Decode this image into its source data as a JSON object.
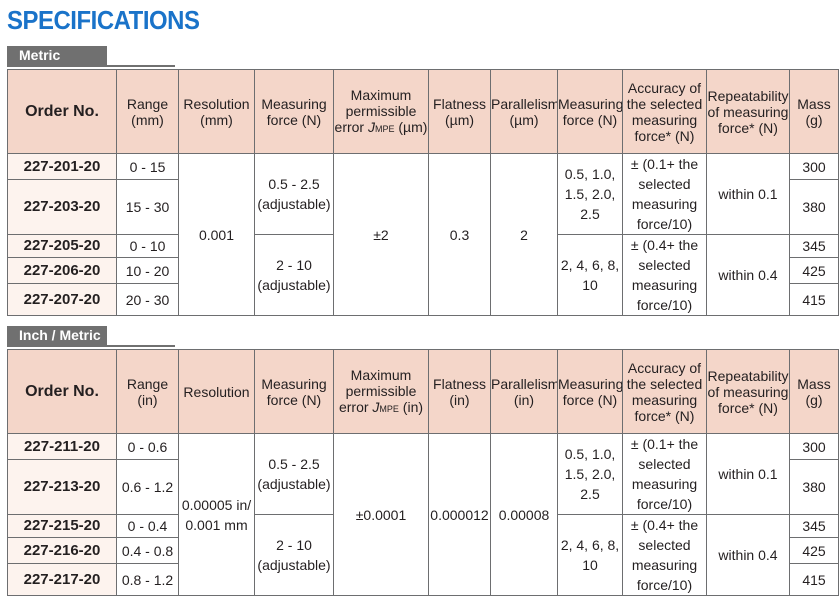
{
  "title": "SPECIFICATIONS",
  "sections": [
    {
      "label": "Metric",
      "headers": {
        "order": "Order No.",
        "range": "Range (mm)",
        "resolution": "Resolution (mm)",
        "force": "Measuring force (N)",
        "mpe_pre": "Maximum permissible error ",
        "mpe_j": "J",
        "mpe_sub": "MPE",
        "mpe_unit": " (µm)",
        "flatness": "Flatness (µm)",
        "parallelism": "Parallelism (µm)",
        "force2": "Measuring force (N)",
        "accuracy": "Accuracy of the selected measuring force* (N)",
        "repeatability": "Repeatability of measuring force* (N)",
        "mass": "Mass (g)"
      },
      "rows": [
        {
          "order": "227-201-20",
          "range": "0 - 15",
          "mass": "300"
        },
        {
          "order": "227-203-20",
          "range": "15 - 30",
          "mass": "380"
        },
        {
          "order": "227-205-20",
          "range": "0 - 10",
          "mass": "345"
        },
        {
          "order": "227-206-20",
          "range": "10 - 20",
          "mass": "425"
        },
        {
          "order": "227-207-20",
          "range": "20 - 30",
          "mass": "415"
        }
      ],
      "resolution": "0.001",
      "mpe": "±2",
      "flatness": "0.3",
      "parallelism": "2",
      "force_a": "0.5 - 2.5 (adjustable)",
      "force_b": "2 - 10 (adjustable)",
      "force2_a": "0.5, 1.0, 1.5, 2.0, 2.5",
      "force2_b": "2, 4, 6, 8, 10",
      "accuracy_a": "± (0.1+ the selected measuring force/10)",
      "accuracy_b": "± (0.4+ the selected measuring force/10)",
      "repeat_a": "within 0.1",
      "repeat_b": "within 0.4"
    },
    {
      "label": "Inch / Metric",
      "headers": {
        "order": "Order No.",
        "range": "Range (in)",
        "resolution": "Resolution",
        "force": "Measuring force (N)",
        "mpe_pre": "Maximum permissible error ",
        "mpe_j": "J",
        "mpe_sub": "MPE",
        "mpe_unit": " (in)",
        "flatness": "Flatness (in)",
        "parallelism": "Parallelism (in)",
        "force2": "Measuring force (N)",
        "accuracy": "Accuracy of the selected measuring force* (N)",
        "repeatability": "Repeatability of measuring force* (N)",
        "mass": "Mass (g)"
      },
      "rows": [
        {
          "order": "227-211-20",
          "range": "0 - 0.6",
          "mass": "300"
        },
        {
          "order": "227-213-20",
          "range": "0.6 - 1.2",
          "mass": "380"
        },
        {
          "order": "227-215-20",
          "range": "0 - 0.4",
          "mass": "345"
        },
        {
          "order": "227-216-20",
          "range": "0.4 - 0.8",
          "mass": "425"
        },
        {
          "order": "227-217-20",
          "range": "0.8 - 1.2",
          "mass": "415"
        }
      ],
      "resolution": "0.00005 in/ 0.001 mm",
      "mpe": "±0.0001",
      "flatness": "0.000012",
      "parallelism": "0.00008",
      "force_a": "0.5 - 2.5 (adjustable)",
      "force_b": "2 - 10 (adjustable)",
      "force2_a": "0.5, 1.0, 1.5, 2.0, 2.5",
      "force2_b": "2, 4, 6, 8, 10",
      "accuracy_a": "± (0.1+ the selected measuring force/10)",
      "accuracy_b": "± (0.4+ the selected measuring force/10)",
      "repeat_a": "within 0.1",
      "repeat_b": "within 0.4"
    }
  ]
}
